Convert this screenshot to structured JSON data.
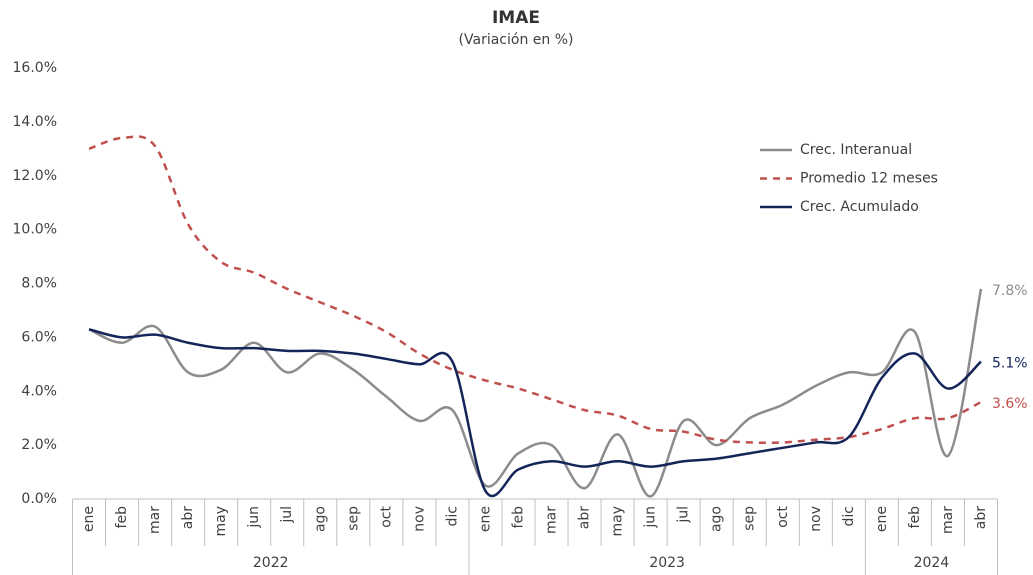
{
  "chart_data": {
    "type": "line",
    "title": "IMAE",
    "subtitle": "(Variación en %)",
    "category_groups": [
      {
        "name": "2022",
        "categories": [
          "ene",
          "feb",
          "mar",
          "abr",
          "may",
          "jun",
          "jul",
          "ago",
          "sep",
          "oct",
          "nov",
          "dic"
        ]
      },
      {
        "name": "2023",
        "categories": [
          "ene",
          "feb",
          "mar",
          "abr",
          "may",
          "jun",
          "jul",
          "ago",
          "sep",
          "oct",
          "nov",
          "dic"
        ]
      },
      {
        "name": "2024",
        "categories": [
          "ene",
          "feb",
          "mar",
          "abr"
        ]
      }
    ],
    "ylim": [
      0,
      16
    ],
    "yticks": [
      {
        "value": 0,
        "label": "0.0%"
      },
      {
        "value": 2,
        "label": "2.0%"
      },
      {
        "value": 4,
        "label": "4.0%"
      },
      {
        "value": 6,
        "label": "6.0%"
      },
      {
        "value": 8,
        "label": "8.0%"
      },
      {
        "value": 10,
        "label": "10.0%"
      },
      {
        "value": 12,
        "label": "12.0%"
      },
      {
        "value": 14,
        "label": "14.0%"
      },
      {
        "value": 16,
        "label": "16.0%"
      }
    ],
    "grid": false,
    "legend": "upper right",
    "series": [
      {
        "name": "Crec. Interanual",
        "color": "#8c8c8c",
        "dash": false,
        "values": [
          6.3,
          5.8,
          6.4,
          4.7,
          4.8,
          5.8,
          4.7,
          5.4,
          4.8,
          3.8,
          2.9,
          3.3,
          0.5,
          1.7,
          2.0,
          0.4,
          2.4,
          0.1,
          2.9,
          2.0,
          3.0,
          3.5,
          4.2,
          4.7,
          4.7,
          6.2,
          1.6,
          7.8
        ],
        "value_labels": [
          null,
          null,
          null,
          null,
          null,
          null,
          null,
          null,
          null,
          null,
          null,
          null,
          null,
          null,
          null,
          null,
          null,
          null,
          null,
          null,
          null,
          null,
          null,
          null,
          null,
          null,
          null,
          "7.8%"
        ]
      },
      {
        "name": "Promedio 12 meses",
        "color": "#c0504d",
        "dash": true,
        "values": [
          13.0,
          13.4,
          13.1,
          10.2,
          8.8,
          8.4,
          7.8,
          7.3,
          6.8,
          6.2,
          5.4,
          4.8,
          4.4,
          4.1,
          3.7,
          3.3,
          3.1,
          2.6,
          2.5,
          2.2,
          2.1,
          2.1,
          2.2,
          2.3,
          2.6,
          3.0,
          3.0,
          3.6
        ],
        "value_labels": [
          null,
          null,
          null,
          null,
          null,
          null,
          null,
          null,
          null,
          null,
          null,
          null,
          null,
          null,
          null,
          null,
          null,
          null,
          null,
          null,
          null,
          null,
          null,
          null,
          null,
          null,
          null,
          "3.6%"
        ]
      },
      {
        "name": "Crec. Acumulado",
        "color": "#14255a",
        "dash": false,
        "values": [
          6.3,
          6.0,
          6.1,
          5.8,
          5.6,
          5.6,
          5.5,
          5.5,
          5.4,
          5.2,
          5.0,
          5.1,
          0.3,
          1.1,
          1.4,
          1.2,
          1.4,
          1.2,
          1.4,
          1.5,
          1.7,
          1.9,
          2.1,
          2.3,
          4.5,
          5.4,
          4.1,
          5.1
        ],
        "value_labels": [
          null,
          null,
          null,
          null,
          null,
          null,
          null,
          null,
          null,
          null,
          null,
          null,
          null,
          null,
          null,
          null,
          null,
          null,
          null,
          null,
          null,
          null,
          null,
          null,
          null,
          null,
          null,
          "5.1%"
        ]
      }
    ]
  }
}
